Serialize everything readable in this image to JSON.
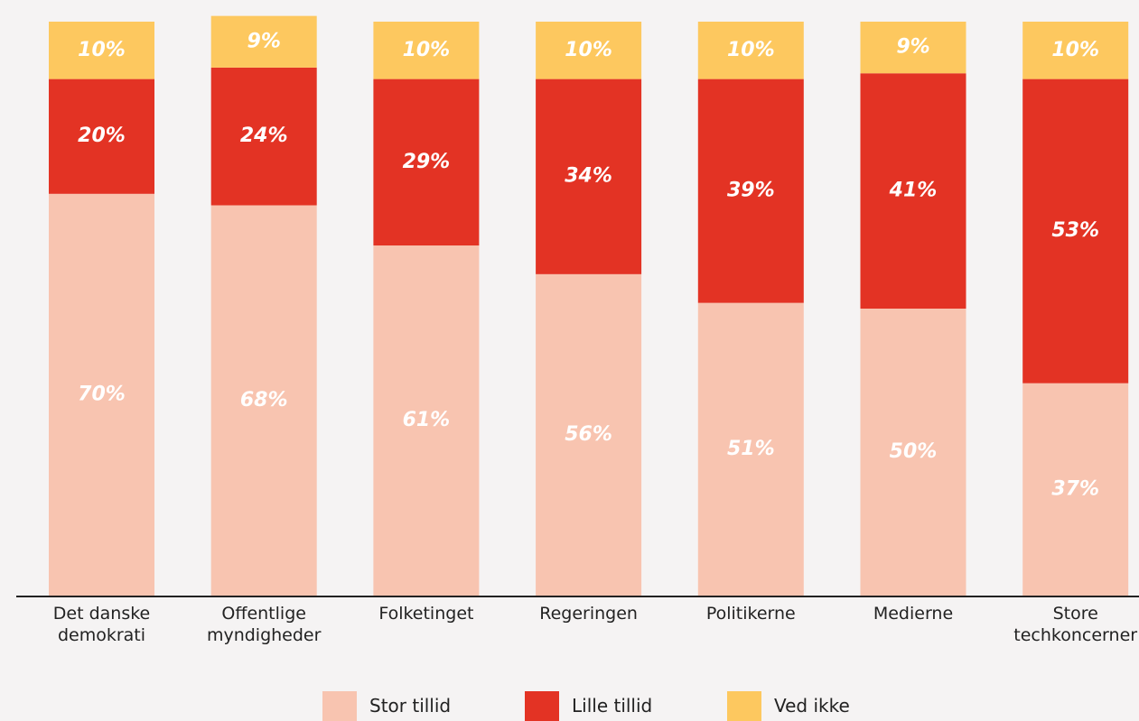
{
  "chart_data": {
    "type": "stacked_bar",
    "categories": [
      "Det danske demokrati",
      "Offentlige myndigheder",
      "Folketinget",
      "Regeringen",
      "Politikerne",
      "Medierne",
      "Store techkoncerner"
    ],
    "series": [
      {
        "name": "Stor tillid",
        "color": "#f8c4b0",
        "values": [
          70,
          68,
          61,
          56,
          51,
          50,
          37
        ],
        "value_labels": [
          "70%",
          "68%",
          "61%",
          "56%",
          "51%",
          "50%",
          "37%"
        ]
      },
      {
        "name": "Lille tillid",
        "color": "#e33324",
        "values": [
          20,
          24,
          29,
          34,
          39,
          41,
          53
        ],
        "value_labels": [
          "20%",
          "24%",
          "29%",
          "34%",
          "39%",
          "41%",
          "53%"
        ]
      },
      {
        "name": "Ved ikke",
        "color": "#fdc85f",
        "values": [
          10,
          9,
          10,
          10,
          10,
          9,
          10
        ],
        "value_labels": [
          "10%",
          "9%",
          "10%",
          "10%",
          "10%",
          "9%",
          "10%"
        ]
      }
    ],
    "ylim": [
      0,
      100
    ]
  }
}
